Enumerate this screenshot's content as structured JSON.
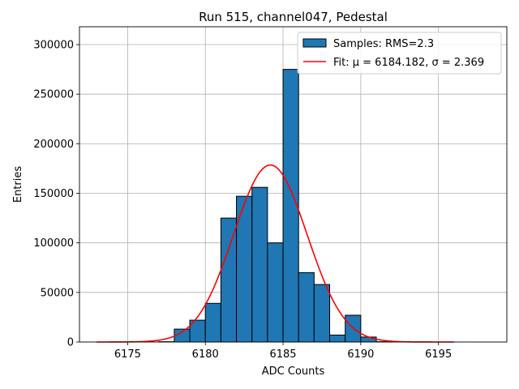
{
  "chart_data": {
    "type": "bar",
    "title": "Run 515, channel047, Pedestal",
    "xlabel": "ADC Counts",
    "ylabel": "Entries",
    "xlim": [
      6171.9,
      6199.4
    ],
    "ylim": [
      0,
      318000
    ],
    "xticks": [
      6175,
      6180,
      6185,
      6190,
      6195
    ],
    "yticks": [
      0,
      50000,
      100000,
      150000,
      200000,
      250000,
      300000
    ],
    "xtick_labels": [
      "6175",
      "6180",
      "6185",
      "6190",
      "6195"
    ],
    "ytick_labels": [
      "0",
      "50000",
      "100000",
      "150000",
      "200000",
      "250000",
      "300000"
    ],
    "grid": true,
    "legend_position": "top-right",
    "bin_width": 1,
    "bins": [
      {
        "x0": 6177,
        "value": 300
      },
      {
        "x0": 6178,
        "value": 13000
      },
      {
        "x0": 6179,
        "value": 22000
      },
      {
        "x0": 6180,
        "value": 39000
      },
      {
        "x0": 6181,
        "value": 125000
      },
      {
        "x0": 6182,
        "value": 147000
      },
      {
        "x0": 6183,
        "value": 156000
      },
      {
        "x0": 6184,
        "value": 100000
      },
      {
        "x0": 6185,
        "value": 275000
      },
      {
        "x0": 6186,
        "value": 70000
      },
      {
        "x0": 6187,
        "value": 58000
      },
      {
        "x0": 6188,
        "value": 7000
      },
      {
        "x0": 6189,
        "value": 27000
      },
      {
        "x0": 6190,
        "value": 5000
      },
      {
        "x0": 6191,
        "value": 300
      }
    ],
    "fit": {
      "type": "gaussian",
      "mu": 6184.182,
      "sigma": 2.369,
      "amplitude": 178500,
      "x_range": [
        6173,
        6196
      ],
      "color": "#ff0000"
    },
    "bar_color": "#1f77b4",
    "bar_edge_color": "#000000",
    "series": [
      {
        "name": "Samples: RMS=2.3"
      },
      {
        "name": "Fit: μ = 6184.182, σ = 2.369"
      }
    ]
  }
}
